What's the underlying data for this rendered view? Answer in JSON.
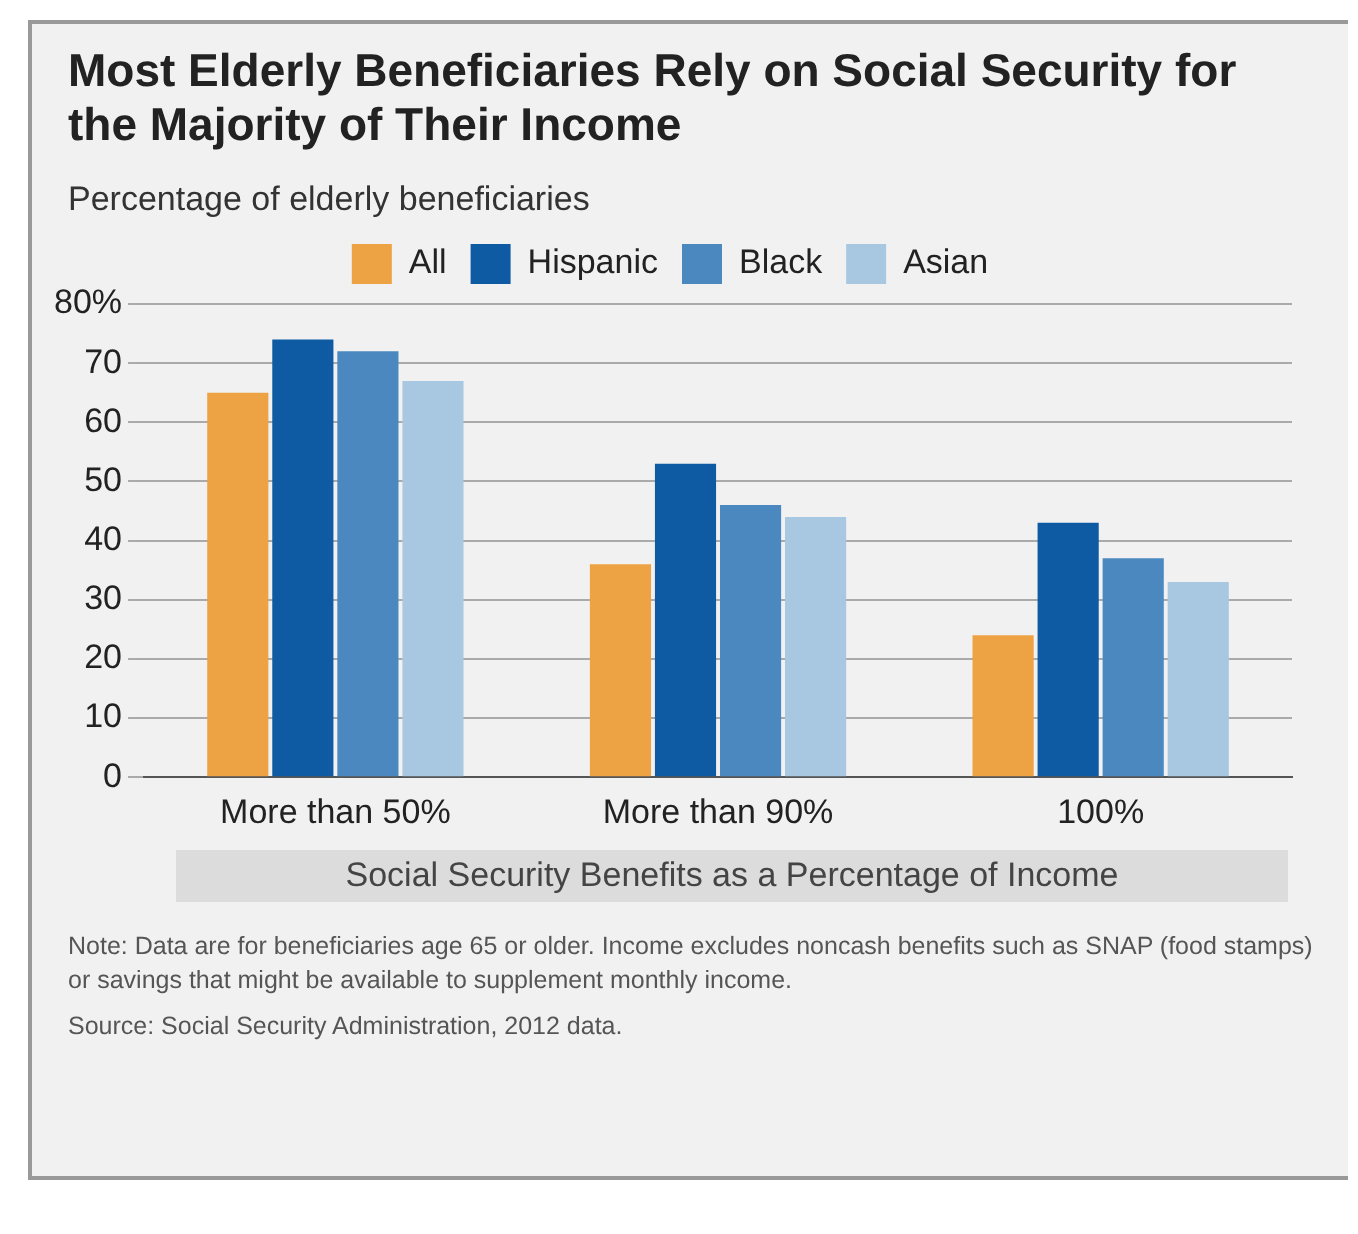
{
  "chart_data": {
    "type": "bar",
    "title": "Most Elderly Beneficiaries Rely on Social Security for the Majority of Their Income",
    "subtitle": "Percentage of elderly beneficiaries",
    "xlabel": "Social Security Benefits as a Percentage of Income",
    "categories": [
      "More than 50%",
      "More than 90%",
      "100%"
    ],
    "series": [
      {
        "name": "All",
        "color": "#eda243",
        "values": [
          65,
          36,
          24
        ]
      },
      {
        "name": "Hispanic",
        "color": "#0f5ba3",
        "values": [
          74,
          53,
          43
        ]
      },
      {
        "name": "Black",
        "color": "#4a88bf",
        "values": [
          72,
          46,
          37
        ]
      },
      {
        "name": "Asian",
        "color": "#a8c8e2",
        "values": [
          67,
          44,
          33
        ]
      }
    ],
    "ylim": [
      0,
      80
    ],
    "yticks": [
      0,
      10,
      20,
      30,
      40,
      50,
      60,
      70,
      {
        "value": 80,
        "label": "80%"
      }
    ],
    "grid": "y",
    "legend": "top",
    "annotations": [
      "Note:  Data are for beneficiaries age 65 or older.  Income excludes noncash benefits such as SNAP (food stamps) or savings that might be available to supplement monthly income.",
      "Source: Social Security Administration, 2012 data."
    ]
  }
}
